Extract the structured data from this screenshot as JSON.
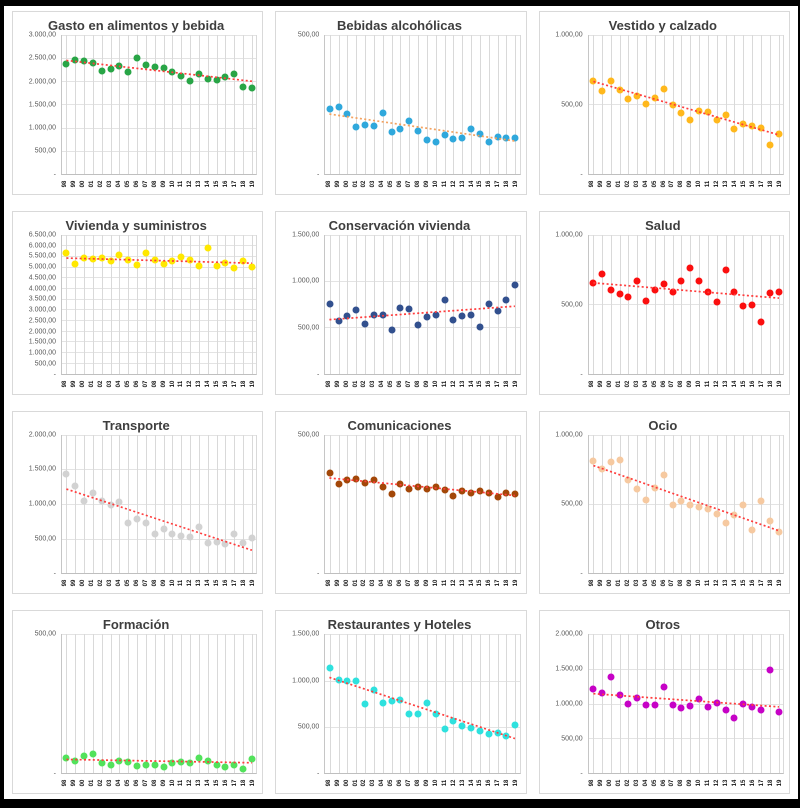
{
  "page": {
    "background": "#ffffff",
    "frame_color": "#000000",
    "panel_border": "#d9d9d9",
    "grid_color": "#d9d9d9",
    "title_color": "#3e3e3e",
    "tick_color": "#595959",
    "default_trend_color": "#ff3c3c"
  },
  "x_categories": [
    "98",
    "99",
    "00",
    "01",
    "02",
    "03",
    "04",
    "05",
    "06",
    "07",
    "08",
    "09",
    "10",
    "11",
    "12",
    "13",
    "14",
    "15",
    "16",
    "17",
    "18",
    "19"
  ],
  "chart_data": [
    {
      "type": "scatter",
      "title": "Gasto en alimentos y bebida",
      "dot_color": "#28a546",
      "trend_color": "#ff3c3c",
      "y_max": 3000,
      "y_ticks": [
        "3.000,00",
        "2.500,00",
        "2.000,00",
        "1.500,00",
        "1.000,00",
        "500,00",
        "-"
      ],
      "values": [
        2380,
        2450,
        2430,
        2390,
        2230,
        2260,
        2330,
        2210,
        2500,
        2350,
        2300,
        2290,
        2190,
        2120,
        2000,
        2150,
        2050,
        2030,
        2100,
        2150,
        1880,
        1860
      ],
      "trend": [
        2450,
        2000
      ]
    },
    {
      "type": "scatter",
      "title": "Bebidas alcohólicas",
      "dot_color": "#2fa8dc",
      "trend_color": "#f3a25f",
      "y_max": 500,
      "y_ticks": [
        "500,00",
        "-"
      ],
      "values": [
        235,
        240,
        215,
        170,
        175,
        172,
        220,
        150,
        162,
        190,
        155,
        122,
        115,
        140,
        126,
        128,
        160,
        142,
        115,
        132,
        128,
        130
      ],
      "trend": [
        215,
        118
      ]
    },
    {
      "type": "scatter",
      "title": "Vestido y calzado",
      "dot_color": "#ffb81c",
      "trend_color": "#ff3c3c",
      "y_max": 1000,
      "y_ticks": [
        "1.000,00",
        "500,00",
        "-"
      ],
      "values": [
        670,
        600,
        668,
        605,
        540,
        560,
        500,
        545,
        610,
        495,
        435,
        390,
        455,
        445,
        390,
        420,
        320,
        360,
        345,
        330,
        210,
        285
      ],
      "trend": [
        665,
        280
      ]
    },
    {
      "type": "scatter",
      "title": "Vivienda y suministros",
      "dot_color": "#ffe800",
      "trend_color": "#ff3c3c",
      "y_max": 6500,
      "y_ticks": [
        "6.500,00",
        "6.000,00",
        "5.500,00",
        "5.000,00",
        "4.500,00",
        "4.000,00",
        "3.500,00",
        "3.000,00",
        "2.500,00",
        "2.000,00",
        "1.500,00",
        "1.000,00",
        "500,00",
        "-"
      ],
      "values": [
        5650,
        5150,
        5400,
        5380,
        5400,
        5250,
        5550,
        5300,
        5100,
        5650,
        5300,
        5150,
        5250,
        5450,
        5300,
        5050,
        5900,
        5050,
        5200,
        4950,
        5250,
        5000
      ],
      "trend": [
        5420,
        5180
      ]
    },
    {
      "type": "scatter",
      "title": "Conservación vivienda",
      "dot_color": "#32508e",
      "trend_color": "#ff3c3c",
      "y_max": 1500,
      "y_ticks": [
        "1.500,00",
        "1.000,00",
        "500,00",
        "-"
      ],
      "values": [
        750,
        570,
        620,
        690,
        540,
        630,
        635,
        475,
        710,
        700,
        520,
        615,
        630,
        790,
        575,
        625,
        630,
        500,
        755,
        680,
        800,
        960
      ],
      "trend": [
        585,
        730
      ]
    },
    {
      "type": "scatter",
      "title": "Salud",
      "dot_color": "#fb0f0f",
      "trend_color": "#ff3c3c",
      "y_max": 1000,
      "y_ticks": [
        "1.000,00",
        "500,00",
        "-"
      ],
      "values": [
        650,
        720,
        600,
        575,
        550,
        670,
        520,
        600,
        645,
        590,
        665,
        760,
        670,
        585,
        515,
        745,
        590,
        490,
        495,
        370,
        580,
        590
      ],
      "trend": [
        655,
        545
      ]
    },
    {
      "type": "scatter",
      "title": "Transporte",
      "dot_color": "#d2d2d2",
      "trend_color": "#ff3c3c",
      "y_max": 2000,
      "y_ticks": [
        "2.000,00",
        "1.500,00",
        "1.000,00",
        "500,00",
        "-"
      ],
      "values": [
        1430,
        1260,
        1040,
        1160,
        1035,
        990,
        1020,
        720,
        780,
        720,
        560,
        640,
        560,
        530,
        525,
        670,
        430,
        450,
        420,
        560,
        430,
        505
      ],
      "trend": [
        1220,
        340
      ]
    },
    {
      "type": "scatter",
      "title": "Comunicaciones",
      "dot_color": "#a34708",
      "trend_color": "#ff3c3c",
      "y_max": 500,
      "y_ticks": [
        "500,00",
        "-"
      ],
      "values": [
        360,
        320,
        335,
        340,
        325,
        335,
        310,
        285,
        320,
        305,
        310,
        305,
        310,
        300,
        280,
        295,
        290,
        295,
        290,
        275,
        290,
        285
      ],
      "trend": [
        345,
        282
      ]
    },
    {
      "type": "scatter",
      "title": "Ocio",
      "dot_color": "#f6c9a0",
      "trend_color": "#ff3c3c",
      "y_max": 1000,
      "y_ticks": [
        "1.000,00",
        "500,00",
        "-"
      ],
      "values": [
        810,
        750,
        800,
        815,
        670,
        610,
        530,
        615,
        710,
        490,
        520,
        490,
        480,
        460,
        430,
        360,
        420,
        490,
        310,
        520,
        380,
        300
      ],
      "trend": [
        780,
        310
      ]
    },
    {
      "type": "scatter",
      "title": "Formación",
      "dot_color": "#52e25b",
      "trend_color": "#ff3c3c",
      "y_max": 500,
      "y_ticks": [
        "500,00",
        "-"
      ],
      "values": [
        55,
        45,
        60,
        70,
        35,
        30,
        45,
        40,
        25,
        30,
        30,
        20,
        35,
        40,
        35,
        55,
        45,
        30,
        20,
        30,
        15,
        50
      ],
      "trend": [
        48,
        36
      ]
    },
    {
      "type": "scatter",
      "title": "Restaurantes y Hoteles",
      "dot_color": "#2ee1de",
      "trend_color": "#ff3c3c",
      "y_max": 1500,
      "y_ticks": [
        "1.500,00",
        "1.000,00",
        "500,00",
        "-"
      ],
      "values": [
        1140,
        1010,
        990,
        990,
        745,
        895,
        755,
        775,
        790,
        640,
        640,
        755,
        640,
        475,
        560,
        510,
        490,
        450,
        420,
        430,
        400,
        520
      ],
      "trend": [
        1030,
        370
      ]
    },
    {
      "type": "scatter",
      "title": "Otros",
      "dot_color": "#c602c6",
      "trend_color": "#ff3c3c",
      "y_max": 2000,
      "y_ticks": [
        "2.000,00",
        "1.500,00",
        "1.000,00",
        "500,00",
        "-"
      ],
      "values": [
        1210,
        1150,
        1380,
        1120,
        1000,
        1080,
        975,
        985,
        1240,
        980,
        940,
        965,
        1070,
        955,
        1005,
        910,
        790,
        1000,
        950,
        910,
        1480,
        875
      ],
      "trend": [
        1140,
        950
      ]
    }
  ]
}
